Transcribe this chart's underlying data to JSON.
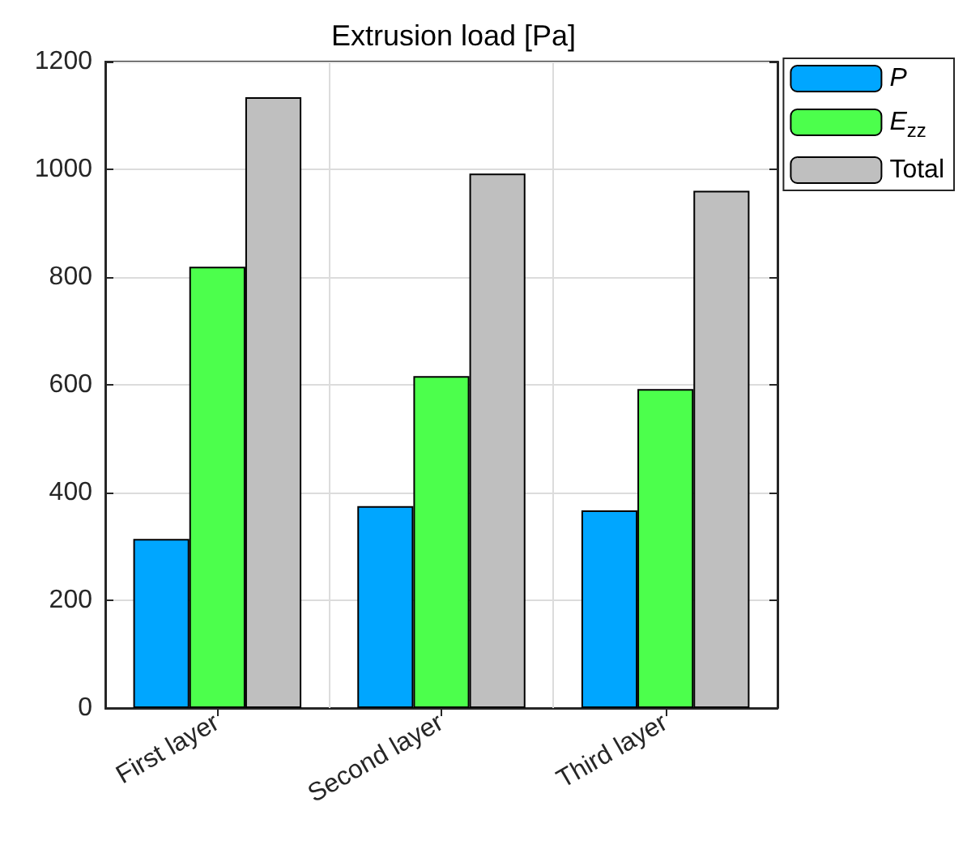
{
  "chart_data": {
    "type": "bar",
    "title": "Extrusion load [Pa]",
    "categories": [
      "First layer",
      "Second layer",
      "Third layer"
    ],
    "series": [
      {
        "name": "P",
        "color": "#00a6ff",
        "values": [
          314,
          375,
          367
        ]
      },
      {
        "name": "E$_{zz}$",
        "color": "#4cff4c",
        "values": [
          819,
          616,
          592
        ]
      },
      {
        "name": "Total",
        "color": "#bfbfbf",
        "values": [
          1134,
          992,
          960
        ]
      }
    ],
    "ylim": [
      0,
      1200
    ],
    "yticks": [
      0,
      200,
      400,
      600,
      800,
      1000,
      1200
    ],
    "grid": true,
    "legend": "top right"
  }
}
